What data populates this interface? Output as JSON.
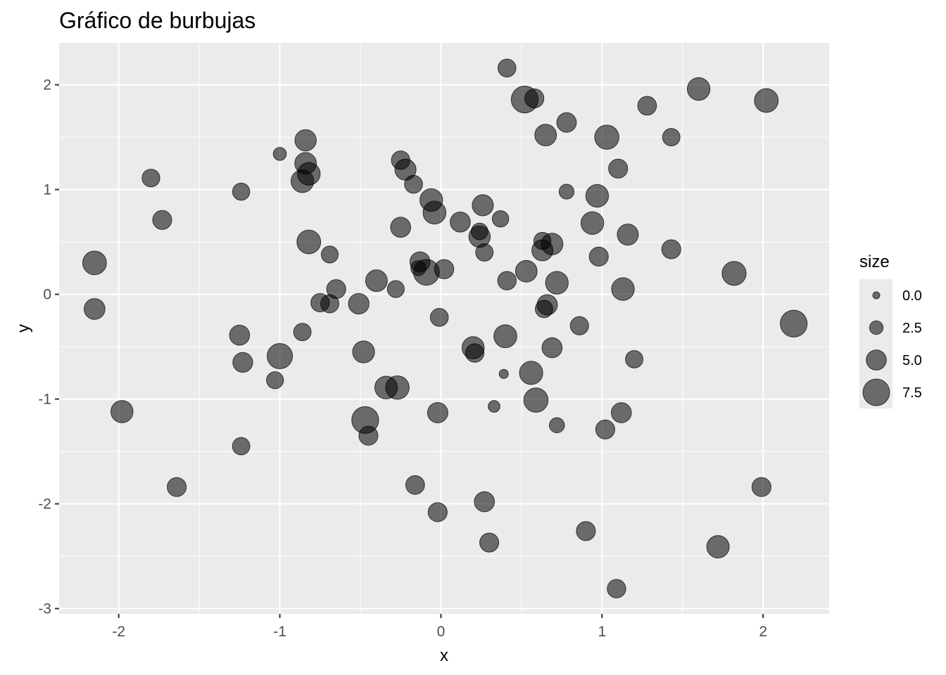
{
  "chart_data": {
    "type": "scatter",
    "title": "Gráfico de burbujas",
    "xlabel": "x",
    "ylabel": "y",
    "xlim": [
      -2.37,
      2.41
    ],
    "ylim": [
      -3.05,
      2.4
    ],
    "x_ticks": [
      -2,
      -1,
      0,
      1,
      2
    ],
    "x_tick_labels": [
      "-2",
      "-1",
      "0",
      "1",
      "2"
    ],
    "y_ticks": [
      -3,
      -2,
      -1,
      0,
      1,
      2
    ],
    "y_tick_labels": [
      "-3",
      "-2",
      "-1",
      "0",
      "1",
      "2"
    ],
    "grid": true,
    "point_color": "#000000",
    "point_alpha": 0.55,
    "panel_color": "#ebebeb",
    "legend": {
      "title": "size",
      "position": "right",
      "entries": [
        {
          "label": "0.0",
          "value": 0.0
        },
        {
          "label": "2.5",
          "value": 2.5
        },
        {
          "label": "5.0",
          "value": 5.0
        },
        {
          "label": "7.5",
          "value": 7.5
        }
      ]
    },
    "size_range": [
      0,
      8.5
    ],
    "points": [
      {
        "x": 0.41,
        "y": 2.16,
        "size": 4.2
      },
      {
        "x": 0.52,
        "y": 1.86,
        "size": 7.6
      },
      {
        "x": 0.58,
        "y": 1.87,
        "size": 4.6
      },
      {
        "x": 1.6,
        "y": 1.96,
        "size": 6.0
      },
      {
        "x": 2.02,
        "y": 1.85,
        "size": 6.4
      },
      {
        "x": 1.28,
        "y": 1.8,
        "size": 4.5
      },
      {
        "x": 0.78,
        "y": 1.64,
        "size": 4.8
      },
      {
        "x": 0.65,
        "y": 1.52,
        "size": 5.6
      },
      {
        "x": 1.03,
        "y": 1.5,
        "size": 6.6
      },
      {
        "x": 1.43,
        "y": 1.5,
        "size": 4.0
      },
      {
        "x": -1.0,
        "y": 1.34,
        "size": 2.3
      },
      {
        "x": -0.84,
        "y": 1.47,
        "size": 5.5
      },
      {
        "x": -0.84,
        "y": 1.25,
        "size": 5.6
      },
      {
        "x": -0.82,
        "y": 1.15,
        "size": 6.0
      },
      {
        "x": -0.86,
        "y": 1.08,
        "size": 6.0
      },
      {
        "x": -0.25,
        "y": 1.28,
        "size": 4.4
      },
      {
        "x": -0.22,
        "y": 1.19,
        "size": 5.4
      },
      {
        "x": -0.17,
        "y": 1.05,
        "size": 4.2
      },
      {
        "x": 1.1,
        "y": 1.2,
        "size": 4.6
      },
      {
        "x": -1.8,
        "y": 1.11,
        "size": 4.1
      },
      {
        "x": -1.24,
        "y": 0.98,
        "size": 3.9
      },
      {
        "x": 0.78,
        "y": 0.98,
        "size": 3.0
      },
      {
        "x": 0.97,
        "y": 0.94,
        "size": 6.0
      },
      {
        "x": -0.06,
        "y": 0.9,
        "size": 6.0
      },
      {
        "x": -0.04,
        "y": 0.78,
        "size": 6.1
      },
      {
        "x": 0.26,
        "y": 0.85,
        "size": 5.4
      },
      {
        "x": -1.73,
        "y": 0.71,
        "size": 4.6
      },
      {
        "x": 0.12,
        "y": 0.69,
        "size": 5.0
      },
      {
        "x": 0.37,
        "y": 0.72,
        "size": 3.6
      },
      {
        "x": 0.94,
        "y": 0.68,
        "size": 6.0
      },
      {
        "x": -0.25,
        "y": 0.64,
        "size": 5.0
      },
      {
        "x": 0.24,
        "y": 0.6,
        "size": 3.7
      },
      {
        "x": 0.24,
        "y": 0.55,
        "size": 5.5
      },
      {
        "x": 1.16,
        "y": 0.57,
        "size": 5.4
      },
      {
        "x": -0.82,
        "y": 0.5,
        "size": 6.4
      },
      {
        "x": 0.63,
        "y": 0.51,
        "size": 3.9
      },
      {
        "x": 0.69,
        "y": 0.48,
        "size": 5.6
      },
      {
        "x": 0.63,
        "y": 0.42,
        "size": 5.4
      },
      {
        "x": 1.43,
        "y": 0.43,
        "size": 4.6
      },
      {
        "x": -0.69,
        "y": 0.38,
        "size": 3.8
      },
      {
        "x": 0.27,
        "y": 0.4,
        "size": 4.0
      },
      {
        "x": 0.98,
        "y": 0.36,
        "size": 4.6
      },
      {
        "x": -0.13,
        "y": 0.31,
        "size": 5.0
      },
      {
        "x": -0.14,
        "y": 0.25,
        "size": 3.1
      },
      {
        "x": -0.09,
        "y": 0.21,
        "size": 7.2
      },
      {
        "x": 0.02,
        "y": 0.24,
        "size": 4.7
      },
      {
        "x": 0.53,
        "y": 0.22,
        "size": 5.6
      },
      {
        "x": 1.82,
        "y": 0.2,
        "size": 6.5
      },
      {
        "x": -2.15,
        "y": 0.3,
        "size": 6.4
      },
      {
        "x": -0.4,
        "y": 0.13,
        "size": 5.6
      },
      {
        "x": 0.41,
        "y": 0.13,
        "size": 4.4
      },
      {
        "x": 0.72,
        "y": 0.11,
        "size": 6.0
      },
      {
        "x": -0.65,
        "y": 0.05,
        "size": 4.6
      },
      {
        "x": -0.28,
        "y": 0.05,
        "size": 3.8
      },
      {
        "x": 1.13,
        "y": 0.05,
        "size": 6.0
      },
      {
        "x": -0.51,
        "y": -0.09,
        "size": 5.2
      },
      {
        "x": -0.75,
        "y": -0.08,
        "size": 4.4
      },
      {
        "x": -0.69,
        "y": -0.09,
        "size": 4.3
      },
      {
        "x": -2.15,
        "y": -0.14,
        "size": 5.3
      },
      {
        "x": 0.66,
        "y": -0.1,
        "size": 5.1
      },
      {
        "x": 0.64,
        "y": -0.14,
        "size": 4.0
      },
      {
        "x": -0.01,
        "y": -0.22,
        "size": 4.2
      },
      {
        "x": 2.19,
        "y": -0.28,
        "size": 7.6
      },
      {
        "x": 0.86,
        "y": -0.3,
        "size": 4.3
      },
      {
        "x": -0.86,
        "y": -0.36,
        "size": 4.0
      },
      {
        "x": -1.25,
        "y": -0.39,
        "size": 5.0
      },
      {
        "x": 0.4,
        "y": -0.4,
        "size": 6.1
      },
      {
        "x": 0.2,
        "y": -0.51,
        "size": 5.8
      },
      {
        "x": 0.21,
        "y": -0.56,
        "size": 4.4
      },
      {
        "x": 0.69,
        "y": -0.51,
        "size": 5.0
      },
      {
        "x": -0.48,
        "y": -0.55,
        "size": 5.7
      },
      {
        "x": -1.0,
        "y": -0.59,
        "size": 7.0
      },
      {
        "x": 1.2,
        "y": -0.62,
        "size": 4.0
      },
      {
        "x": -1.23,
        "y": -0.65,
        "size": 4.9
      },
      {
        "x": 0.56,
        "y": -0.75,
        "size": 6.2
      },
      {
        "x": 0.39,
        "y": -0.76,
        "size": 0.8
      },
      {
        "x": -1.03,
        "y": -0.82,
        "size": 3.8
      },
      {
        "x": -0.34,
        "y": -0.89,
        "size": 6.0
      },
      {
        "x": -0.27,
        "y": -0.89,
        "size": 6.3
      },
      {
        "x": 0.59,
        "y": -1.01,
        "size": 6.6
      },
      {
        "x": 0.33,
        "y": -1.07,
        "size": 1.8
      },
      {
        "x": -1.98,
        "y": -1.12,
        "size": 5.8
      },
      {
        "x": -0.02,
        "y": -1.13,
        "size": 5.1
      },
      {
        "x": 1.12,
        "y": -1.13,
        "size": 5.0
      },
      {
        "x": -0.47,
        "y": -1.2,
        "size": 7.6
      },
      {
        "x": 0.72,
        "y": -1.25,
        "size": 3.1
      },
      {
        "x": 1.02,
        "y": -1.29,
        "size": 4.6
      },
      {
        "x": -0.45,
        "y": -1.35,
        "size": 4.6
      },
      {
        "x": -1.24,
        "y": -1.45,
        "size": 4.0
      },
      {
        "x": -1.64,
        "y": -1.84,
        "size": 4.6
      },
      {
        "x": -0.16,
        "y": -1.82,
        "size": 4.5
      },
      {
        "x": 1.99,
        "y": -1.84,
        "size": 4.6
      },
      {
        "x": 0.27,
        "y": -1.98,
        "size": 5.0
      },
      {
        "x": -0.02,
        "y": -2.08,
        "size": 4.6
      },
      {
        "x": 0.9,
        "y": -2.26,
        "size": 4.6
      },
      {
        "x": 0.3,
        "y": -2.37,
        "size": 4.6
      },
      {
        "x": 1.72,
        "y": -2.41,
        "size": 5.9
      },
      {
        "x": 1.09,
        "y": -2.81,
        "size": 4.4
      }
    ]
  }
}
